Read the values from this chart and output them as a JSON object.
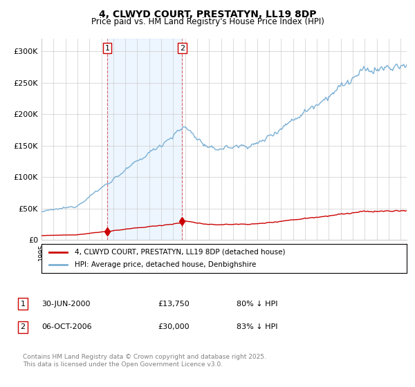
{
  "title": "4, CLWYD COURT, PRESTATYN, LL19 8DP",
  "subtitle": "Price paid vs. HM Land Registry's House Price Index (HPI)",
  "legend_line1": "4, CLWYD COURT, PRESTATYN, LL19 8DP (detached house)",
  "legend_line2": "HPI: Average price, detached house, Denbighshire",
  "footer": "Contains HM Land Registry data © Crown copyright and database right 2025.\nThis data is licensed under the Open Government Licence v3.0.",
  "transaction1_date": "30-JUN-2000",
  "transaction1_price": "£13,750",
  "transaction1_hpi": "80% ↓ HPI",
  "transaction2_date": "06-OCT-2006",
  "transaction2_price": "£30,000",
  "transaction2_hpi": "83% ↓ HPI",
  "price_paid_color": "#cc0000",
  "hpi_color": "#7aafd4",
  "vline_color": "#cc0000",
  "vline_alpha": 0.6,
  "shade_color": "#ddeeff",
  "shade_alpha": 0.5,
  "ylim_min": 0,
  "ylim_max": 320000,
  "yticks": [
    0,
    50000,
    100000,
    150000,
    200000,
    250000,
    300000
  ],
  "ytick_labels": [
    "£0",
    "£50K",
    "£100K",
    "£150K",
    "£200K",
    "£250K",
    "£300K"
  ],
  "transaction1_x": 2000.5,
  "transaction2_x": 2006.75,
  "transaction1_y": 13750,
  "transaction2_y": 30000,
  "xlim_min": 1995,
  "xlim_max": 2025.5
}
